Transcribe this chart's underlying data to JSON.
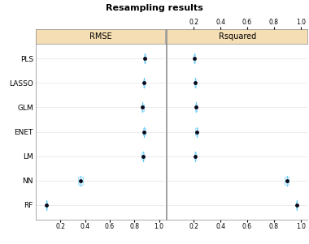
{
  "title": "Resampling results",
  "methods": [
    "PLS",
    "LASSO",
    "GLM",
    "ENET",
    "LM",
    "NN",
    "RF"
  ],
  "rmse": {
    "median": [
      0.885,
      0.875,
      0.865,
      0.878,
      0.868,
      0.365,
      0.09
    ],
    "q1": [
      0.878,
      0.868,
      0.855,
      0.868,
      0.86,
      0.345,
      0.085
    ],
    "q3": [
      0.892,
      0.882,
      0.875,
      0.888,
      0.876,
      0.385,
      0.095
    ],
    "whisker_low": [
      0.872,
      0.862,
      0.848,
      0.86,
      0.853,
      0.325,
      0.079
    ],
    "whisker_high": [
      0.898,
      0.888,
      0.882,
      0.895,
      0.882,
      0.405,
      0.101
    ]
  },
  "rsquared": {
    "median": [
      0.205,
      0.21,
      0.218,
      0.222,
      0.21,
      0.895,
      0.968
    ],
    "q1": [
      0.198,
      0.203,
      0.21,
      0.214,
      0.203,
      0.88,
      0.963
    ],
    "q3": [
      0.212,
      0.218,
      0.226,
      0.232,
      0.218,
      0.91,
      0.973
    ],
    "whisker_low": [
      0.192,
      0.197,
      0.204,
      0.208,
      0.197,
      0.87,
      0.958
    ],
    "whisker_high": [
      0.218,
      0.224,
      0.234,
      0.24,
      0.224,
      0.92,
      0.978
    ]
  },
  "rmse_xlim": [
    0.0,
    1.05
  ],
  "rsq_xlim": [
    0.0,
    1.05
  ],
  "rmse_xticks": [
    0.2,
    0.4,
    0.6,
    0.8,
    1.0
  ],
  "rsq_xticks": [
    0.2,
    0.4,
    0.6,
    0.8,
    1.0
  ],
  "panel_header_bg": "#f5deb3",
  "dot_color": "#0a0a1a",
  "box_edge_color": "#5bc8fa",
  "box_fill_color": "#d0eefa",
  "whisker_color": "#5bc8fa",
  "axis_color": "#888888",
  "title_fontsize": 8,
  "label_fontsize": 6.5,
  "tick_fontsize": 5.5,
  "header_fontsize": 7
}
